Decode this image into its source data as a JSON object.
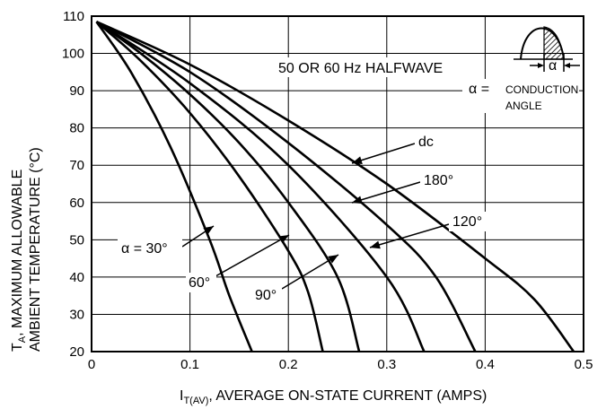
{
  "chart_data": {
    "type": "line",
    "xlabel_main": "I",
    "xlabel_sub": "T(AV)",
    "xlabel_rest": ", AVERAGE ON-STATE CURRENT (AMPS)",
    "ylabel_line1_main": "T",
    "ylabel_line1_sub": "A",
    "ylabel_line1_rest": ", MAXIMUM ALLOWABLE",
    "ylabel_line2": "AMBIENT TEMPERATURE (°C)",
    "xlim": [
      0,
      0.5
    ],
    "ylim": [
      20,
      110
    ],
    "x_ticks": [
      0,
      0.1,
      0.2,
      0.3,
      0.4,
      0.5
    ],
    "x_tick_labels": [
      "0",
      "0.1",
      "0.2",
      "0.3",
      "0.4",
      "0.5"
    ],
    "y_ticks": [
      20,
      30,
      40,
      50,
      60,
      70,
      80,
      90,
      100,
      110
    ],
    "y_tick_labels": [
      "20",
      "30",
      "40",
      "50",
      "60",
      "70",
      "80",
      "90",
      "100",
      "110"
    ],
    "grid": true,
    "series": [
      {
        "name": "α = 30°",
        "x": [
          0.005,
          0.04,
          0.08,
          0.12,
          0.14,
          0.163
        ],
        "y": [
          108.5,
          95,
          75,
          50,
          35,
          20
        ]
      },
      {
        "name": "60°",
        "x": [
          0.005,
          0.05,
          0.1,
          0.15,
          0.2,
          0.22,
          0.235
        ],
        "y": [
          108.5,
          98,
          84,
          67,
          47,
          36,
          20
        ]
      },
      {
        "name": "90°",
        "x": [
          0.005,
          0.05,
          0.1,
          0.15,
          0.2,
          0.25,
          0.272
        ],
        "y": [
          108.5,
          100,
          89,
          76,
          60,
          40,
          20
        ]
      },
      {
        "name": "120°",
        "x": [
          0.005,
          0.1,
          0.2,
          0.3,
          0.338
        ],
        "y": [
          108.5,
          92,
          70,
          40,
          20
        ]
      },
      {
        "name": "180°",
        "x": [
          0.005,
          0.1,
          0.2,
          0.3,
          0.35,
          0.39
        ],
        "y": [
          108.5,
          95,
          76,
          54,
          40,
          20
        ]
      },
      {
        "name": "dc",
        "x": [
          0.005,
          0.1,
          0.2,
          0.3,
          0.4,
          0.45,
          0.49
        ],
        "y": [
          108.5,
          97,
          82,
          65,
          45,
          34,
          20
        ]
      }
    ],
    "inset": {
      "title": "50 OR 60 Hz HALFWAVE",
      "alpha_symbol": "α",
      "alpha_eq": "α =",
      "conduction_line1": "CONDUCTION",
      "conduction_line2": "ANGLE"
    },
    "curve_labels": {
      "a30": "α = 30°",
      "a60": "60°",
      "a90": "90°",
      "a120": "120°",
      "a180": "180°",
      "dc": "dc"
    }
  }
}
